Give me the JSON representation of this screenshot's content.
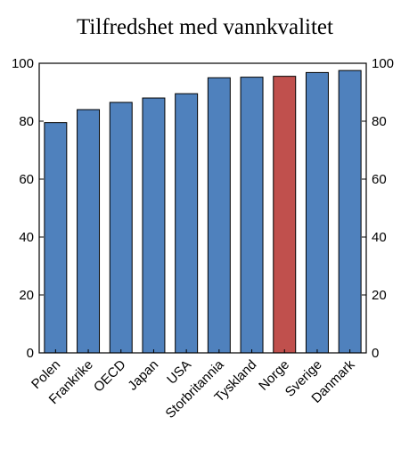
{
  "chart_data": {
    "type": "bar",
    "title": "Tilfredshet med vannkvalitet",
    "categories": [
      "Polen",
      "Frankrike",
      "OECD",
      "Japan",
      "USA",
      "Storbritannia",
      "Tyskland",
      "Norge",
      "Sverige",
      "Danmark"
    ],
    "values": [
      79.5,
      84,
      86.5,
      88,
      89.5,
      95,
      95.2,
      95.5,
      96.8,
      97.5
    ],
    "ylim": [
      0,
      100
    ],
    "yticks": [
      0,
      20,
      40,
      60,
      80,
      100
    ],
    "y_axis_both_sides": true,
    "grid": false,
    "bar_color": "#4f81bd",
    "highlight_color": "#c0504d",
    "highlight_category": "Norge"
  }
}
